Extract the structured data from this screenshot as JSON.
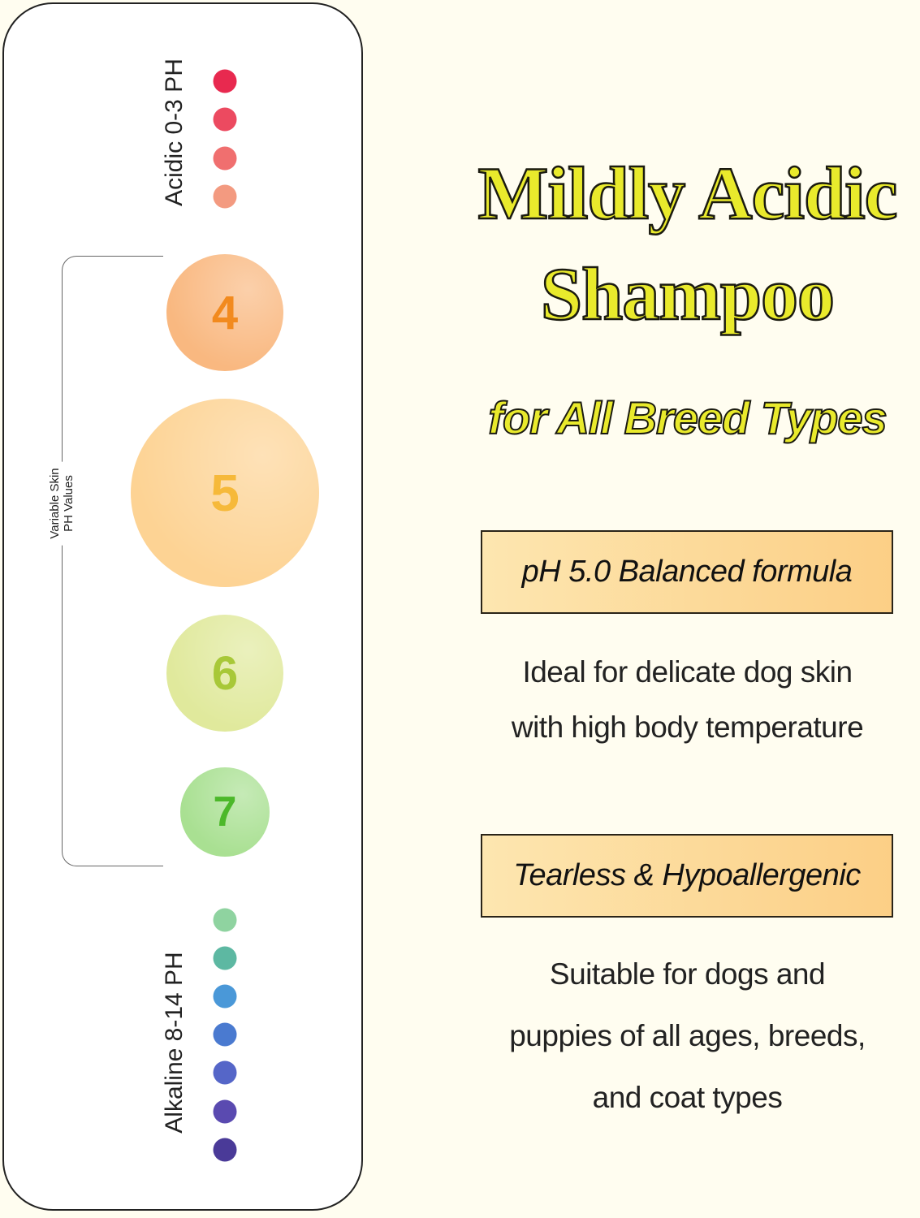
{
  "scale": {
    "acidic_label": "Acidic 0-3 PH",
    "alkaline_label": "Alkaline 8-14 PH",
    "bracket_label_line1": "Variable Skin",
    "bracket_label_line2": "PH Values",
    "acidic_dots": [
      "#e8294f",
      "#ec4a60",
      "#f06f6f",
      "#f39a80"
    ],
    "skin_values": [
      {
        "label": "4",
        "color": "#f9b880",
        "text_color": "#f28a1e"
      },
      {
        "label": "5",
        "color": "#fdd394",
        "text_color": "#f6b93a"
      },
      {
        "label": "6",
        "color": "#e0e99c",
        "text_color": "#a8c838"
      },
      {
        "label": "7",
        "color": "#a9e092",
        "text_color": "#4cb82a"
      }
    ],
    "alkaline_dots": [
      "#8fd3a0",
      "#5db8a2",
      "#4a98d8",
      "#4a7ad0",
      "#5566c8",
      "#5a4ab0",
      "#4a3a98"
    ]
  },
  "headline": {
    "line1": "Mildly Acidic",
    "line2": "Shampoo",
    "line3": "for All Breed Types",
    "color": "#e9ea2c"
  },
  "feature1": {
    "badge": "pH 5.0 Balanced formula",
    "desc_line1": "Ideal for delicate dog skin",
    "desc_line2": "with high body temperature"
  },
  "feature2": {
    "badge": "Tearless & Hypoallergenic",
    "desc_line1": "Suitable for dogs and",
    "desc_line2": "puppies of all ages, breeds,",
    "desc_line3": "and coat types"
  }
}
